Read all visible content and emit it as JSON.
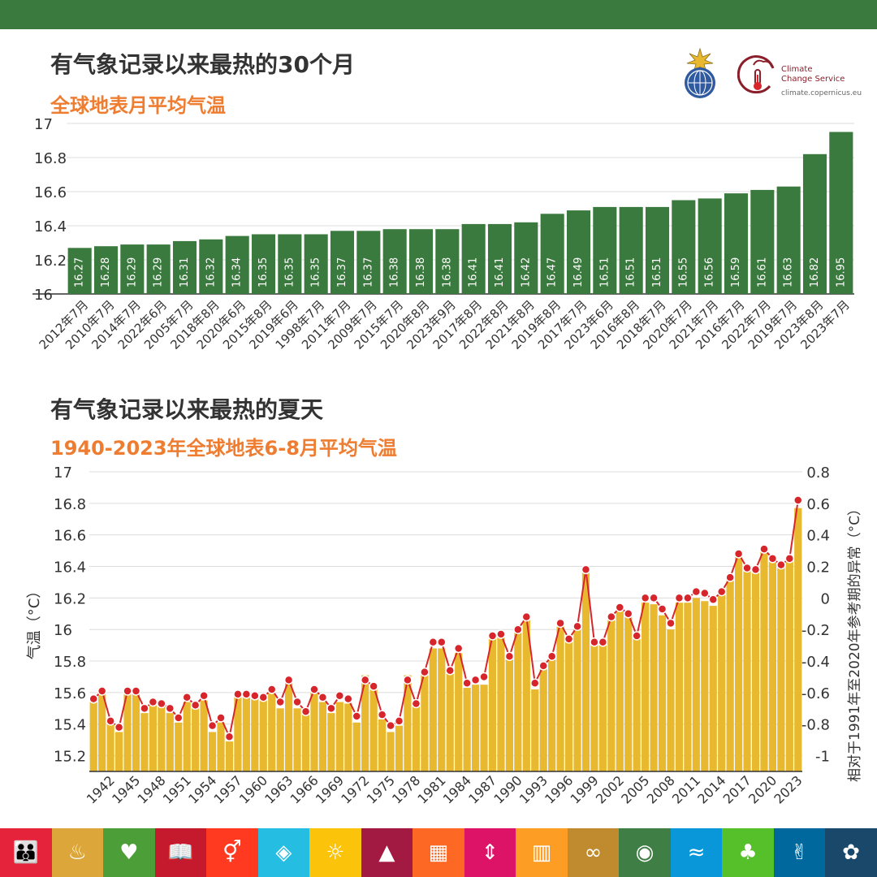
{
  "colors": {
    "top_bar": "#3b7a3e",
    "title": "#333333",
    "subtitle": "#ee7d31",
    "bar_green": "#3b7a3e",
    "bar_gold": "#e8b92f",
    "anomaly_red": "#d7262b",
    "grid": "#dcdcdc"
  },
  "logos": {
    "wmo_icon": "wmo-emblem",
    "c3s_icon": "thermometer-cloud",
    "c3s_line1": "Climate",
    "c3s_line2": "Change Service",
    "c3s_url": "climate.copernicus.eu"
  },
  "section1": {
    "title": "有气象记录以来最热的30个月",
    "subtitle": "全球地表月平均气温"
  },
  "section2": {
    "title": "有气象记录以来最热的夏天",
    "subtitle": "1940-2023年全球地表6-8月平均气温"
  },
  "chart_data": [
    {
      "type": "bar",
      "title": "有气象记录以来最热的30个月",
      "subtitle": "全球地表月平均气温",
      "ylim": [
        16,
        17
      ],
      "yticks": [
        "16",
        "16.2",
        "16.4",
        "16.6",
        "16.8",
        "17"
      ],
      "grid": true,
      "categories": [
        "2012年7月",
        "2010年7月",
        "2014年7月",
        "2022年6月",
        "2005年7月",
        "2018年8月",
        "2020年6月",
        "2015年8月",
        "2019年6月",
        "1998年7月",
        "2011年7月",
        "2009年7月",
        "2015年7月",
        "2020年8月",
        "2023年9月",
        "2017年8月",
        "2022年8月",
        "2021年8月",
        "2019年8月",
        "2017年7月",
        "2023年6月",
        "2016年8月",
        "2018年7月",
        "2020年7月",
        "2021年7月",
        "2016年7月",
        "2022年7月",
        "2019年7月",
        "2023年8月",
        "2023年7月"
      ],
      "values": [
        16.27,
        16.28,
        16.29,
        16.29,
        16.31,
        16.32,
        16.34,
        16.35,
        16.35,
        16.35,
        16.37,
        16.37,
        16.38,
        16.38,
        16.38,
        16.41,
        16.41,
        16.42,
        16.47,
        16.49,
        16.51,
        16.51,
        16.51,
        16.55,
        16.56,
        16.59,
        16.61,
        16.63,
        16.82,
        16.95
      ],
      "labels": [
        "16.27",
        "16.28",
        "16.29",
        "16.29",
        "16.31",
        "16.32",
        "16.34",
        "16.35",
        "16.35",
        "16.35",
        "16.37",
        "16.37",
        "16.38",
        "16.38",
        "16.38",
        "16.41",
        "16.41",
        "16.42",
        "16.47",
        "16.49",
        "16.51",
        "16.51",
        "16.51",
        "16.55",
        "16.56",
        "16.59",
        "16.61",
        "16.63",
        "16.82",
        "16.95"
      ]
    },
    {
      "type": "bar",
      "title": "有气象记录以来最热的夏天",
      "subtitle": "1940-2023年全球地表6-8月平均气温",
      "ylabel": "气温（°C）",
      "y2label": "相对于1991年至2020年参考期的异常（°C）",
      "ylim": [
        15.1,
        17
      ],
      "yticks": [
        "15.2",
        "15.4",
        "15.6",
        "15.8",
        "16",
        "16.2",
        "16.4",
        "16.6",
        "16.8",
        "17"
      ],
      "y2ticks": [
        "-1",
        "-0.8",
        "-0.6",
        "-0.4",
        "-0.2",
        "0",
        "0.2",
        "0.4",
        "0.6",
        "0.8"
      ],
      "y2_offset": 16.2,
      "grid": true,
      "x_start": 1940,
      "x_tick_labels": [
        "1942",
        "1945",
        "1948",
        "1951",
        "1954",
        "1957",
        "1960",
        "1963",
        "1966",
        "1969",
        "1972",
        "1975",
        "1978",
        "1981",
        "1984",
        "1987",
        "1990",
        "1993",
        "1996",
        "1999",
        "2002",
        "2005",
        "2008",
        "2011",
        "2014",
        "2017",
        "2020",
        "2023"
      ],
      "series": [
        {
          "values": [
            15.56,
            15.59,
            15.41,
            15.35,
            15.59,
            15.59,
            15.47,
            15.52,
            15.51,
            15.47,
            15.41,
            15.54,
            15.51,
            15.55,
            15.35,
            15.41,
            15.29,
            15.58,
            15.57,
            15.56,
            15.55,
            15.6,
            15.5,
            15.66,
            15.5,
            15.46,
            15.6,
            15.54,
            15.47,
            15.54,
            15.53,
            15.41,
            15.71,
            15.62,
            15.43,
            15.35,
            15.39,
            15.71,
            15.51,
            15.72,
            15.88,
            15.88,
            15.72,
            15.85,
            15.63,
            15.65,
            15.65,
            15.95,
            15.97,
            15.81,
            15.98,
            16.06,
            15.62,
            15.75,
            15.81,
            16.02,
            15.92,
            16.02,
            16.38,
            15.91,
            15.9,
            16.06,
            16.12,
            16.08,
            15.94,
            16.17,
            16.16,
            16.09,
            16.0,
            16.17,
            16.17,
            16.2,
            16.18,
            16.15,
            16.22,
            16.34,
            16.46,
            16.37,
            16.36,
            16.5,
            16.43,
            16.4,
            16.44,
            16.77
          ]
        },
        {
          "values": [
            -0.64,
            -0.59,
            -0.78,
            -0.82,
            -0.59,
            -0.59,
            -0.7,
            -0.66,
            -0.67,
            -0.7,
            -0.76,
            -0.63,
            -0.68,
            -0.62,
            -0.81,
            -0.76,
            -0.88,
            -0.61,
            -0.61,
            -0.62,
            -0.63,
            -0.58,
            -0.66,
            -0.52,
            -0.66,
            -0.72,
            -0.58,
            -0.63,
            -0.7,
            -0.62,
            -0.64,
            -0.75,
            -0.52,
            -0.56,
            -0.74,
            -0.81,
            -0.78,
            -0.52,
            -0.67,
            -0.47,
            -0.28,
            -0.28,
            -0.46,
            -0.32,
            -0.54,
            -0.52,
            -0.5,
            -0.24,
            -0.23,
            -0.37,
            -0.2,
            -0.12,
            -0.54,
            -0.43,
            -0.37,
            -0.16,
            -0.26,
            -0.18,
            0.18,
            -0.28,
            -0.28,
            -0.12,
            -0.06,
            -0.1,
            -0.24,
            0.0,
            0.0,
            -0.07,
            -0.16,
            0.0,
            0.0,
            0.04,
            0.03,
            -0.01,
            0.04,
            0.13,
            0.28,
            0.19,
            0.18,
            0.31,
            0.25,
            0.21,
            0.25,
            0.62
          ]
        }
      ]
    }
  ],
  "sdg_icons": [
    {
      "name": "no-poverty-icon",
      "glyph": "👪",
      "color": "#e5243b"
    },
    {
      "name": "zero-hunger-icon",
      "glyph": "♨",
      "color": "#dda63a"
    },
    {
      "name": "health-icon",
      "glyph": "♥",
      "color": "#4c9f38"
    },
    {
      "name": "education-icon",
      "glyph": "📖",
      "color": "#c5192d"
    },
    {
      "name": "gender-equality-icon",
      "glyph": "⚥",
      "color": "#ff3a21"
    },
    {
      "name": "clean-water-icon",
      "glyph": "◈",
      "color": "#26bde2"
    },
    {
      "name": "clean-energy-icon",
      "glyph": "☼",
      "color": "#fcc30b"
    },
    {
      "name": "economic-growth-icon",
      "glyph": "▲",
      "color": "#a21942"
    },
    {
      "name": "industry-icon",
      "glyph": "▦",
      "color": "#fd6925"
    },
    {
      "name": "reduced-inequalities-icon",
      "glyph": "⇕",
      "color": "#dd1367"
    },
    {
      "name": "sustainable-cities-icon",
      "glyph": "▥",
      "color": "#fd9d24"
    },
    {
      "name": "responsible-consumption-icon",
      "glyph": "∞",
      "color": "#bf8b2e"
    },
    {
      "name": "climate-action-icon",
      "glyph": "◉",
      "color": "#3f7e44"
    },
    {
      "name": "life-below-water-icon",
      "glyph": "≈",
      "color": "#0a97d9"
    },
    {
      "name": "life-on-land-icon",
      "glyph": "♣",
      "color": "#56c02b"
    },
    {
      "name": "peace-justice-icon",
      "glyph": "✌",
      "color": "#00689d"
    },
    {
      "name": "partnerships-icon",
      "glyph": "✿",
      "color": "#19486a"
    }
  ]
}
